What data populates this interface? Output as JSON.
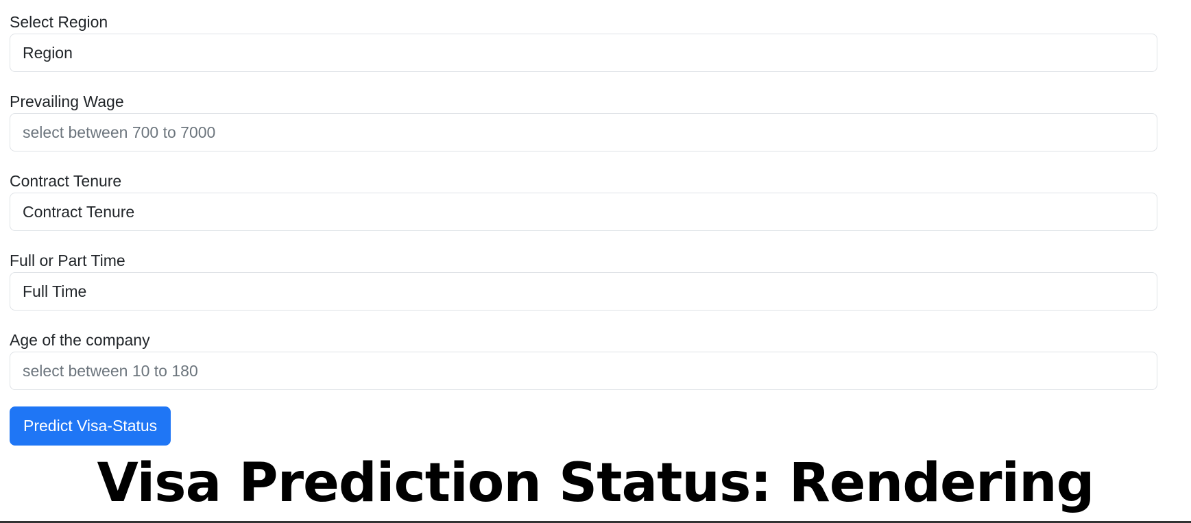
{
  "form": {
    "region": {
      "label": "Select Region",
      "value": "Region"
    },
    "wage": {
      "label": "Prevailing Wage",
      "placeholder": "select between 700 to 7000"
    },
    "tenure": {
      "label": "Contract Tenure",
      "value": "Contract Tenure"
    },
    "employment": {
      "label": "Full or Part Time",
      "value": "Full Time"
    },
    "company_age": {
      "label": "Age of the company",
      "placeholder": "select between 10 to 180"
    },
    "submit_label": "Predict Visa-Status"
  },
  "result": {
    "status_text": "Visa Prediction Status: Rendering"
  },
  "colors": {
    "primary_button": "#1f76f5",
    "border": "#dee2e6",
    "placeholder": "#6c757d"
  }
}
